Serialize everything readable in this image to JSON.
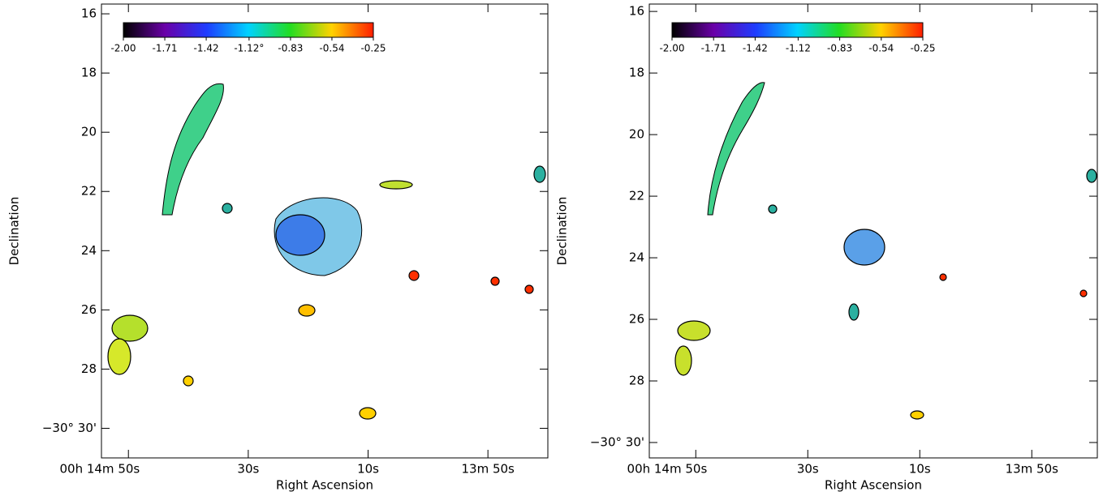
{
  "chart_data": [
    {
      "type": "image",
      "xlabel": "Right Ascension",
      "ylabel": "Declination",
      "xlim": [
        894.5,
        820
      ],
      "ylim": [
        31.0,
        15.67
      ],
      "xticks": [
        {
          "value": 890,
          "label": "00h 14m 50s"
        },
        {
          "value": 870,
          "label": "30s"
        },
        {
          "value": 850,
          "label": "10s"
        },
        {
          "value": 830,
          "label": "13m 50s"
        }
      ],
      "yticks": [
        16,
        18,
        20,
        22,
        24,
        26,
        28,
        {
          "value": 30,
          "label": "−30° 30'"
        }
      ],
      "colorbar": {
        "lim": [
          -2.0,
          -0.25
        ],
        "ticks": [
          {
            "value": -2.0,
            "label": "-2.00"
          },
          {
            "value": -1.71,
            "label": "-1.71"
          },
          {
            "value": -1.42,
            "label": "-1.42"
          },
          {
            "value": -1.12,
            "label": "-1.12°"
          },
          {
            "value": -0.83,
            "label": "-0.83"
          },
          {
            "value": -0.54,
            "label": "-0.54"
          },
          {
            "value": -0.25,
            "label": "-0.25"
          }
        ],
        "colors": [
          "#000000",
          "#6a00a8",
          "#1e3cff",
          "#00d2ff",
          "#22dd22",
          "#ffd200",
          "#ff1e00"
        ]
      }
    },
    {
      "type": "image",
      "xlabel": "Right Ascension",
      "ylabel": "Declination",
      "xlim": [
        898.3,
        818.3
      ],
      "ylim": [
        30.5,
        15.76
      ],
      "xticks": [
        {
          "value": 890,
          "label": "00h 14m 50s"
        },
        {
          "value": 870,
          "label": "30s"
        },
        {
          "value": 850,
          "label": "10s"
        },
        {
          "value": 830,
          "label": "13m 50s"
        }
      ],
      "yticks": [
        16,
        18,
        20,
        22,
        24,
        26,
        28,
        {
          "value": 30,
          "label": "−30° 30'"
        }
      ],
      "colorbar": {
        "lim": [
          -2.0,
          -0.25
        ],
        "ticks": [
          {
            "value": -2.0,
            "label": "-2.00"
          },
          {
            "value": -1.71,
            "label": "-1.71"
          },
          {
            "value": -1.42,
            "label": "-1.42"
          },
          {
            "value": -1.12,
            "label": "-1.12"
          },
          {
            "value": -0.83,
            "label": "-0.83"
          },
          {
            "value": -0.54,
            "label": "-0.54"
          },
          {
            "value": -0.25,
            "label": "-0.25"
          }
        ],
        "colors": [
          "#000000",
          "#6a00a8",
          "#1e3cff",
          "#00d2ff",
          "#22dd22",
          "#ffd200",
          "#ff1e00"
        ]
      }
    }
  ]
}
